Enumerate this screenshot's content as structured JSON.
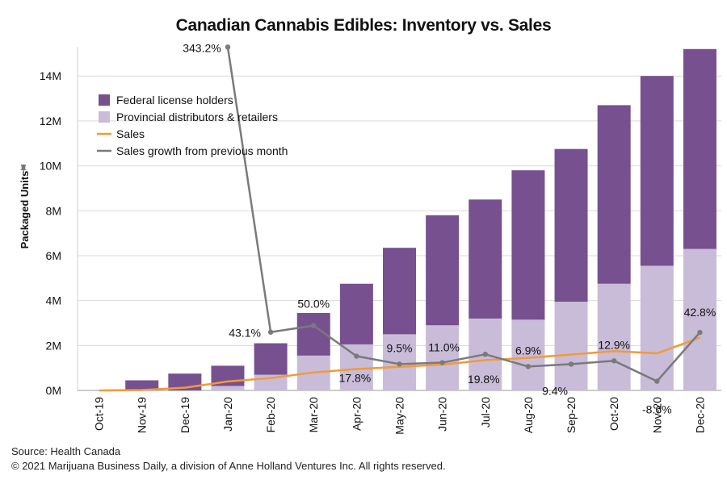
{
  "chart_data": {
    "type": "bar",
    "title": "Canadian Cannabis Edibles: Inventory vs. Sales",
    "ylabel": "Packaged Units",
    "ylim": [
      0,
      15300000
    ],
    "yticks": [
      "0M",
      "2M",
      "4M",
      "6M",
      "8M",
      "10M",
      "12M",
      "14M"
    ],
    "ytick_values": [
      0,
      2000000,
      4000000,
      6000000,
      8000000,
      10000000,
      12000000,
      14000000
    ],
    "categories": [
      "Oct-19",
      "Nov-19",
      "Dec-19",
      "Jan-20",
      "Feb-20",
      "Mar-20",
      "Apr-20",
      "May-20",
      "Jun-20",
      "Jul-20",
      "Aug-20",
      "Sep-20",
      "Oct-20",
      "Nov-20",
      "Dec-20"
    ],
    "stacked": true,
    "series": [
      {
        "name": "Provincial distributors & retailers",
        "color": "#c9bcd9",
        "values": [
          0,
          0,
          0,
          200000,
          700000,
          1550000,
          2050000,
          2500000,
          2900000,
          3200000,
          3150000,
          3950000,
          4750000,
          5550000,
          6300000
        ]
      },
      {
        "name": "Federal license holders",
        "color": "#77508f",
        "values": [
          0,
          450000,
          750000,
          900000,
          1400000,
          1900000,
          2700000,
          3850000,
          4900000,
          5300000,
          6650000,
          6800000,
          7950000,
          8450000,
          8900000
        ]
      }
    ],
    "lines": [
      {
        "name": "Sales",
        "color": "#f29a38",
        "axis": "primary",
        "values": [
          0,
          20000,
          120000,
          400000,
          550000,
          800000,
          950000,
          1050000,
          1150000,
          1350000,
          1450000,
          1600000,
          1750000,
          1650000,
          2350000
        ]
      },
      {
        "name": "Sales growth from previous month",
        "color": "#7a7a7a",
        "axis": "growth",
        "x_start_index": 3,
        "values": [
          343.2,
          43.1,
          50.0,
          17.8,
          9.5,
          11.0,
          19.8,
          6.9,
          9.4,
          12.9,
          -8.6,
          42.8
        ],
        "labels": [
          "343.2%",
          "43.1%",
          "50.0%",
          "17.8%",
          "9.5%",
          "11.0%",
          "19.8%",
          "6.9%",
          "9.4%",
          "12.9%",
          "-8.6%",
          "42.8%"
        ]
      }
    ],
    "legend_position": "top-left",
    "grid": true
  },
  "footer": {
    "source": "Source: Health Canada",
    "copyright": "© 2021 Marijuana Business Daily, a division of Anne Holland Ventures Inc. All rights reserved."
  }
}
